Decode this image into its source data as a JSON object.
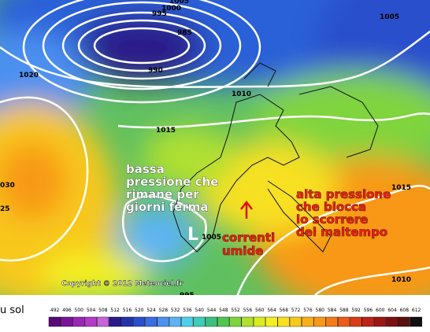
{
  "map": {
    "isobar_labels": [
      "1005",
      "1000",
      "995",
      "985",
      "990",
      "1020",
      "1010",
      "1015",
      "1005",
      "1015",
      "1010",
      "1005",
      "995",
      "030",
      "25"
    ],
    "annotations": {
      "low": "bassa\npressione che\nrimane per\ngiorni ferma",
      "high": "alta pressione\nche blocca\nlo scorrere\ndel maltempo",
      "flow": "correnti\numide",
      "low_marker": "L"
    },
    "copyright": "Copyright © 2012 Meteociel.fr",
    "colorbar_title": "u sol",
    "colorbar": {
      "labels": [
        "492",
        "496",
        "500",
        "504",
        "508",
        "512",
        "516",
        "520",
        "524",
        "528",
        "532",
        "536",
        "540",
        "544",
        "548",
        "552",
        "556",
        "560",
        "564",
        "568",
        "572",
        "576",
        "580",
        "584",
        "588",
        "592",
        "596",
        "600",
        "604",
        "608",
        "612"
      ],
      "colors": [
        "#5a0a78",
        "#7a1496",
        "#9a28b4",
        "#b43cc8",
        "#c864d8",
        "#2a1a8a",
        "#2233aa",
        "#2a4fcc",
        "#3a6ee0",
        "#4c90f0",
        "#5cb4f4",
        "#50d0e8",
        "#40ccb8",
        "#3cc080",
        "#50c850",
        "#80d43c",
        "#b0e030",
        "#d8ec20",
        "#f4f020",
        "#f8e020",
        "#f8c81c",
        "#f8b018",
        "#f89818",
        "#f47c18",
        "#ec5c18",
        "#d83c18",
        "#bc2418",
        "#9c1814",
        "#7c1010",
        "#581010",
        "#101010"
      ]
    }
  }
}
